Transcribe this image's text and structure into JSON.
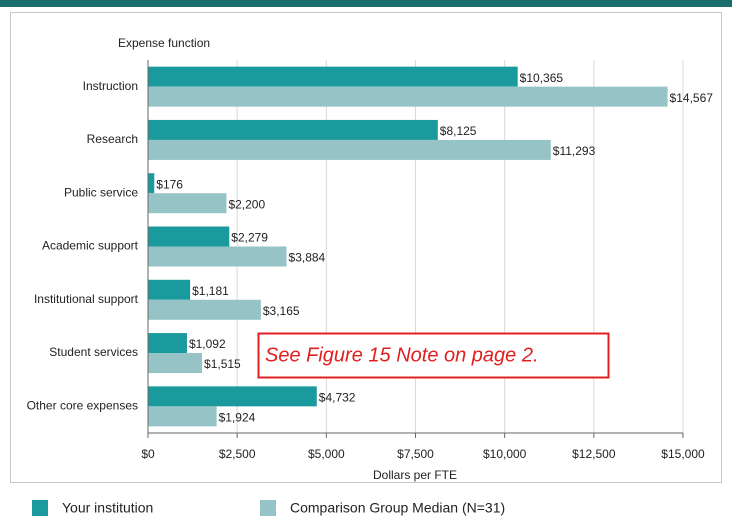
{
  "chart_data": {
    "type": "bar",
    "orientation": "horizontal",
    "y_axis_label": "Expense function",
    "x_axis_label": "Dollars per FTE",
    "annotation": "See Figure 15 Note on page 2.",
    "categories": [
      "Instruction",
      "Research",
      "Public service",
      "Academic support",
      "Institutional support",
      "Student services",
      "Other core expenses"
    ],
    "series": [
      {
        "name": "Your institution",
        "color": "#1a9a9c",
        "values": [
          10365,
          8125,
          176,
          2279,
          1181,
          1092,
          4732
        ],
        "value_labels": [
          "$10,365",
          "$8,125",
          "$176",
          "$2,279",
          "$1,181",
          "$1,092",
          "$4,732"
        ]
      },
      {
        "name": "Comparison Group Median (N=31)",
        "color": "#96c3c6",
        "values": [
          14567,
          11293,
          2200,
          3884,
          3165,
          1515,
          1924
        ],
        "value_labels": [
          "$14,567",
          "$11,293",
          "$2,200",
          "$3,884",
          "$3,165",
          "$1,515",
          "$1,924"
        ]
      }
    ],
    "xlim": [
      0,
      15000
    ],
    "xticks": [
      {
        "value": 0,
        "label": "$0"
      },
      {
        "value": 2500,
        "label": "$2,500"
      },
      {
        "value": 5000,
        "label": "$5,000"
      },
      {
        "value": 7500,
        "label": "$7,500"
      },
      {
        "value": 10000,
        "label": "$10,000"
      },
      {
        "value": 12500,
        "label": "$12,500"
      },
      {
        "value": 15000,
        "label": "$15,000"
      }
    ],
    "grid": true
  }
}
